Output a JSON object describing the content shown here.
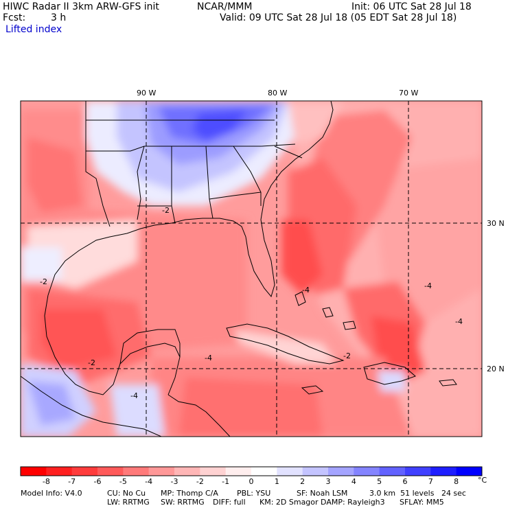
{
  "header": {
    "title": "HIWC Radar II 3km ARW-GFS init",
    "org": "NCAR/MMM",
    "init": "Init: 06 UTC Sat 28 Jul 18",
    "fcst_label": "Fcst:",
    "fcst_value": "3 h",
    "valid": "Valid: 09 UTC Sat 28 Jul 18 (05 EDT Sat 28 Jul 18)",
    "field": "Lifted index",
    "field_color": "#0000cc"
  },
  "map": {
    "lon_labels": [
      "90 W",
      "80 W",
      "70 W"
    ],
    "lat_labels": [
      "30 N",
      "20 N"
    ],
    "contour_labels": [
      "-2",
      "-2",
      "-2",
      "-4",
      "-4",
      "-4",
      "-4",
      "-2",
      "-4"
    ]
  },
  "colorbar": {
    "labels": [
      "-8",
      "-7",
      "-6",
      "-5",
      "-4",
      "-3",
      "-2",
      "-1",
      "0",
      "1",
      "2",
      "3",
      "4",
      "5",
      "6",
      "7",
      "8"
    ],
    "unit": "°C",
    "colors": [
      "#ff0000",
      "#ff2020",
      "#ff3c3c",
      "#ff5a5a",
      "#ff7a7a",
      "#ff9898",
      "#ffb6b6",
      "#ffd2d2",
      "#ffeeee",
      "#ffffff",
      "#e2e2ff",
      "#c4c4ff",
      "#a4a4ff",
      "#8484ff",
      "#6262ff",
      "#4040ff",
      "#1e1eff",
      "#0000ff"
    ]
  },
  "model_info": {
    "line1": [
      "Model Info: V4.0",
      "CU: No Cu",
      "MP: Thomp C/A",
      "PBL: YSU",
      "SF: Noah LSM",
      "3.0 km  51 levels   24 sec"
    ],
    "line2": [
      "LW: RRTMG",
      "SW: RRTMG",
      "DIFF: full",
      "KM: 2D Smagor DAMP: Rayleigh3",
      "SFLAY: MM5"
    ]
  }
}
